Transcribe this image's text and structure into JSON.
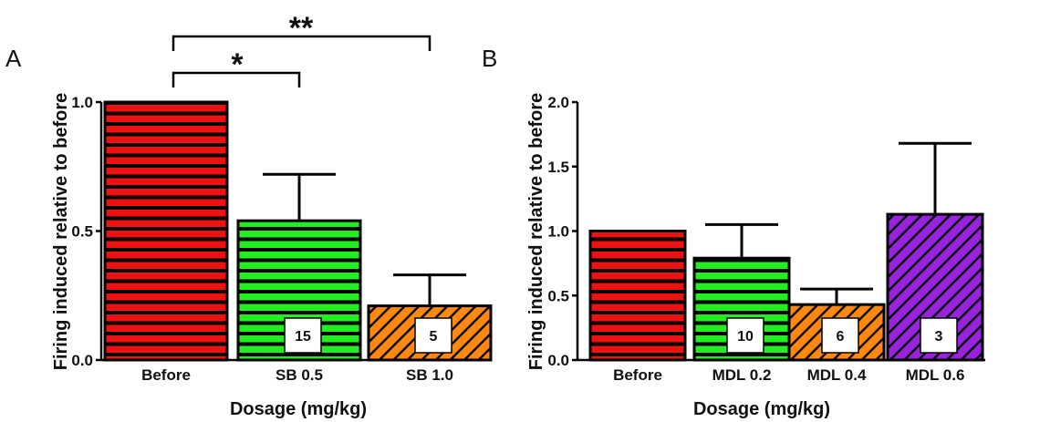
{
  "colors": {
    "red": "#ee1111",
    "green": "#22ee22",
    "orange": "#ff8811",
    "purple": "#9922dd",
    "stroke": "#000000"
  },
  "chart_data": [
    {
      "type": "bar",
      "panel_label": "A",
      "xlabel": "Dosage (mg/kg)",
      "ylabel": "Firing induced relative to before",
      "ylim": [
        0,
        1
      ],
      "yticks": [
        "0.0",
        "0.5",
        "1.0"
      ],
      "categories": [
        "Before",
        "SB 0.5",
        "SB 1.0"
      ],
      "values": [
        1.0,
        0.54,
        0.21
      ],
      "error_upper": [
        null,
        0.72,
        0.33
      ],
      "n_labels": [
        "",
        "15",
        "5"
      ],
      "patterns": [
        "hstripe",
        "hstripe",
        "diag"
      ],
      "bar_colors": [
        "red",
        "green",
        "orange"
      ],
      "significance": [
        {
          "from": "Before",
          "to": "SB 0.5",
          "label": "*"
        },
        {
          "from": "Before",
          "to": "SB 1.0",
          "label": "**"
        }
      ],
      "grid": false
    },
    {
      "type": "bar",
      "panel_label": "B",
      "xlabel": "Dosage (mg/kg)",
      "ylabel": "Firing induced relative to before",
      "ylim": [
        0,
        2
      ],
      "yticks": [
        "0.0",
        "0.5",
        "1.0",
        "1.5",
        "2.0"
      ],
      "categories": [
        "Before",
        "MDL 0.2",
        "MDL 0.4",
        "MDL 0.6"
      ],
      "values": [
        1.0,
        0.79,
        0.43,
        1.13
      ],
      "error_upper": [
        null,
        1.05,
        0.55,
        1.68
      ],
      "n_labels": [
        "",
        "10",
        "6",
        "3"
      ],
      "patterns": [
        "hstripe",
        "hstripe",
        "diag",
        "diag"
      ],
      "bar_colors": [
        "red",
        "green",
        "orange",
        "purple"
      ],
      "significance": [],
      "grid": false
    }
  ]
}
